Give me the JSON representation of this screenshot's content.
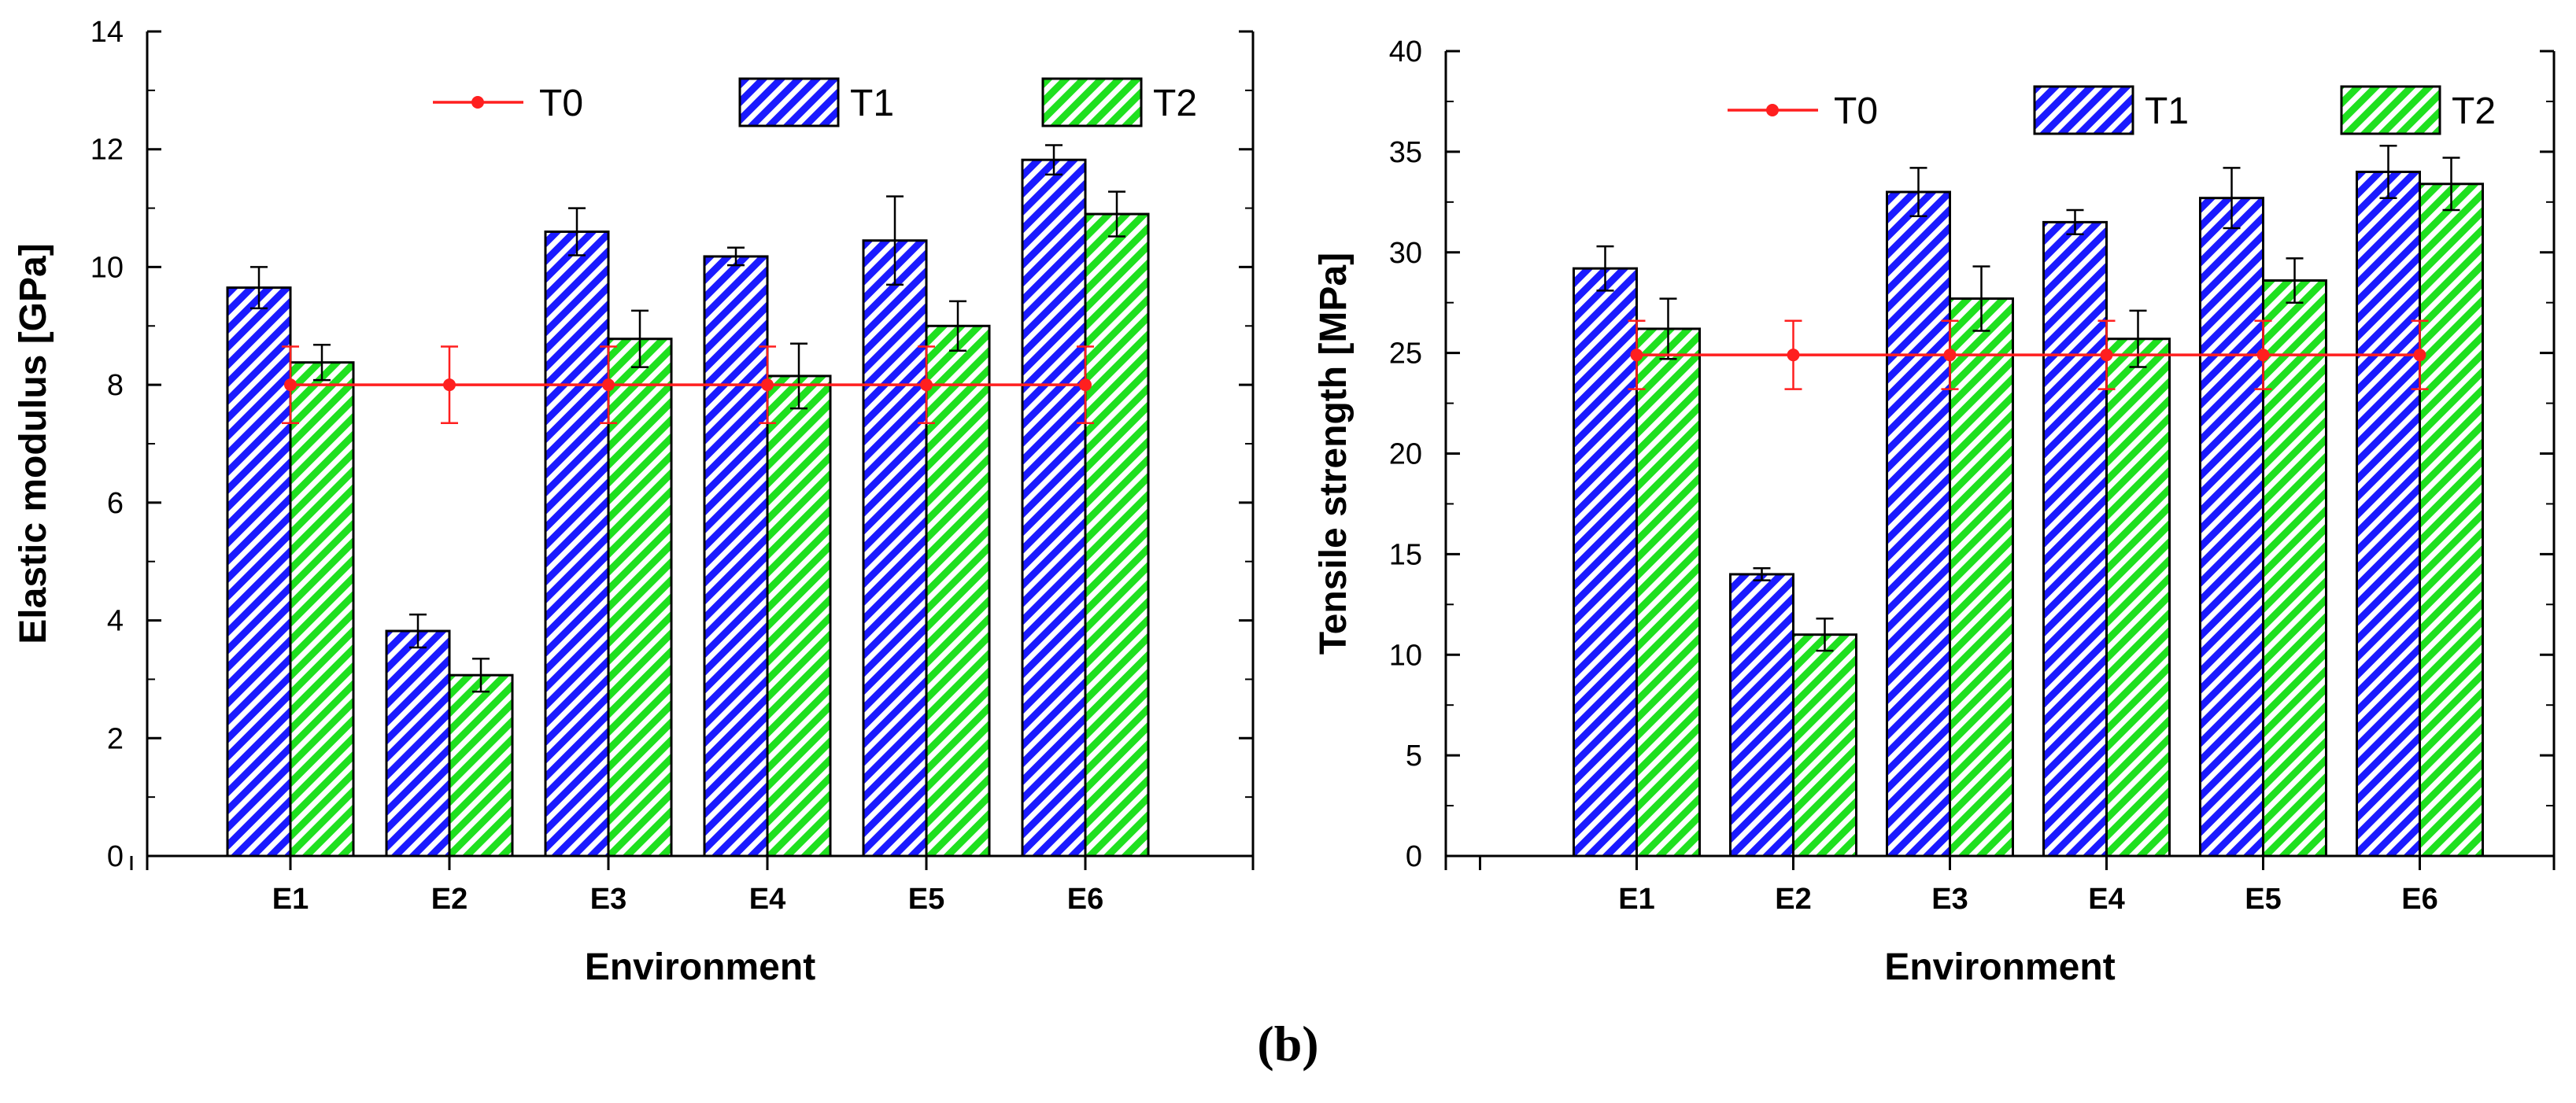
{
  "caption": "(b)",
  "colors": {
    "t0": "#ff1f1f",
    "t1_fill": "#1a1aff",
    "t2_fill": "#1fe01f",
    "axis": "#000000"
  },
  "chart_data": [
    {
      "type": "bar",
      "categories": [
        "E1",
        "E2",
        "E3",
        "E4",
        "E5",
        "E6"
      ],
      "xlabel": "Environment",
      "ylabel": "Elastic modulus [GPa]",
      "ylim": [
        0,
        14
      ],
      "yticks": [
        "0",
        "2",
        "4",
        "6",
        "8",
        "10",
        "12",
        "14"
      ],
      "legend": [
        "T0",
        "T1",
        "T2"
      ],
      "series": [
        {
          "name": "T1",
          "values": [
            9.65,
            3.82,
            10.6,
            10.18,
            10.45,
            11.82
          ],
          "errors": [
            0.35,
            0.28,
            0.4,
            0.15,
            0.75,
            0.25
          ]
        },
        {
          "name": "T2",
          "values": [
            8.38,
            3.07,
            8.78,
            8.15,
            9.0,
            10.9
          ],
          "errors": [
            0.3,
            0.28,
            0.48,
            0.55,
            0.42,
            0.38
          ]
        }
      ],
      "line_series": {
        "name": "T0",
        "value": 8.0,
        "error": 0.65
      }
    },
    {
      "type": "bar",
      "categories": [
        "E1",
        "E2",
        "E3",
        "E4",
        "E5",
        "E6"
      ],
      "xlabel": "Environment",
      "ylabel": "Tensile strength [MPa]",
      "ylim": [
        0,
        40
      ],
      "yticks": [
        "0",
        "5",
        "10",
        "15",
        "20",
        "25",
        "30",
        "35",
        "40"
      ],
      "legend": [
        "T0",
        "T1",
        "T2"
      ],
      "series": [
        {
          "name": "T1",
          "values": [
            29.2,
            14.0,
            33.0,
            31.5,
            32.7,
            34.0
          ],
          "errors": [
            1.1,
            0.3,
            1.2,
            0.6,
            1.5,
            1.3
          ]
        },
        {
          "name": "T2",
          "values": [
            26.2,
            11.0,
            27.7,
            25.7,
            28.6,
            33.4
          ],
          "errors": [
            1.5,
            0.8,
            1.6,
            1.4,
            1.1,
            1.3
          ]
        }
      ],
      "line_series": {
        "name": "T0",
        "value": 24.9,
        "error": 1.7
      }
    }
  ]
}
